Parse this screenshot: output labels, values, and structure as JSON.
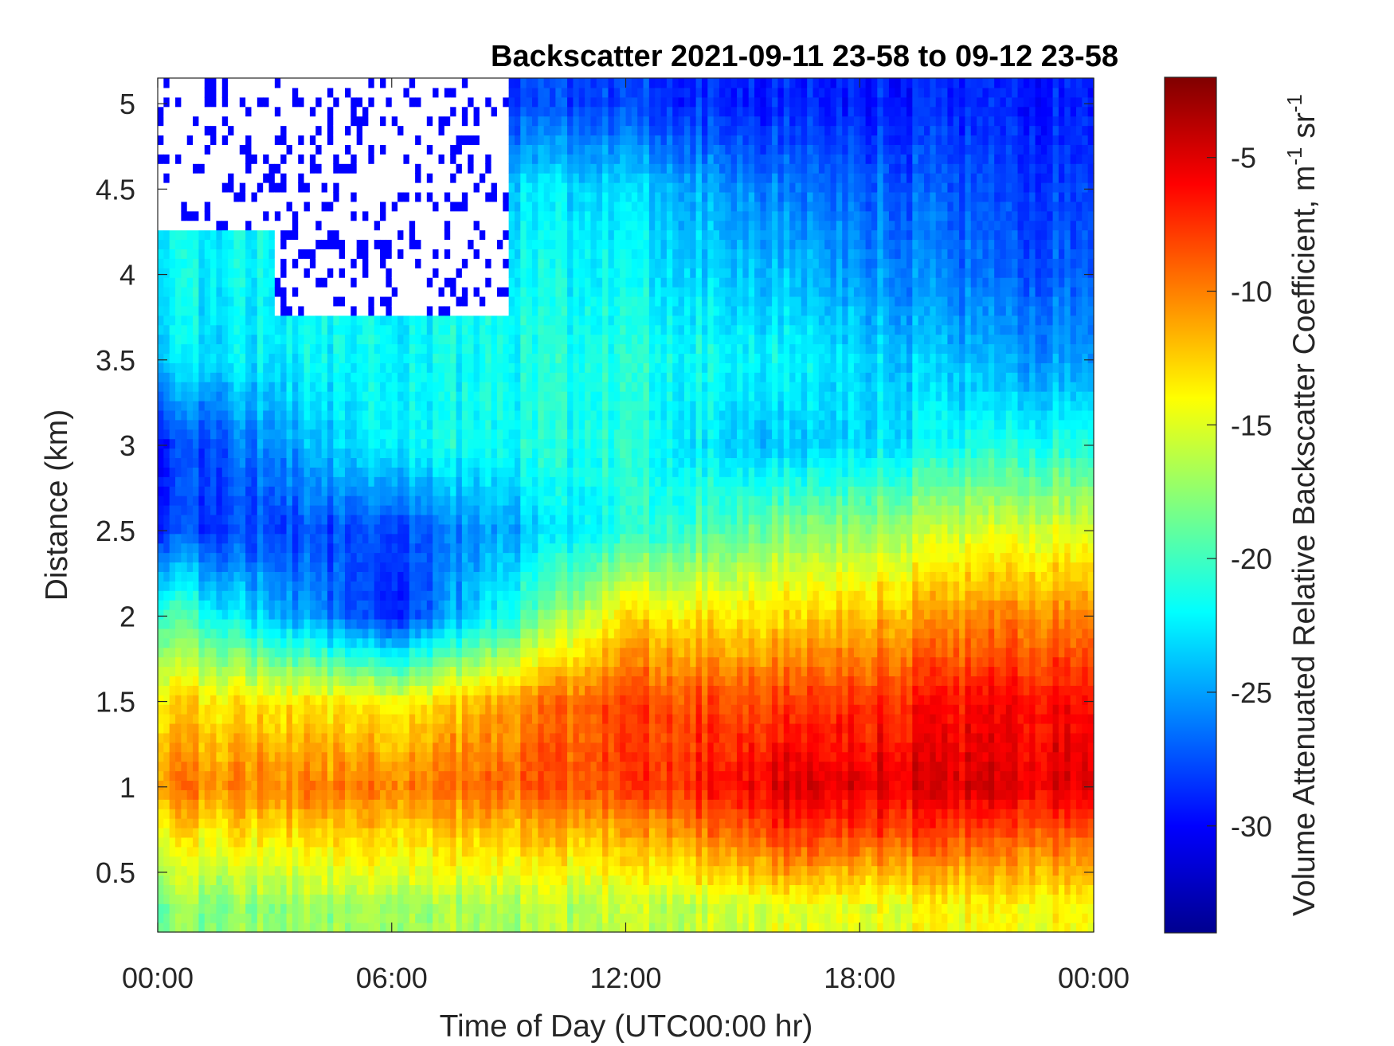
{
  "chart_data": {
    "type": "heatmap",
    "title": "Backscatter 2021-09-11 23-58 to 09-12 23-58",
    "xlabel": "Time of Day (UTC00:00 hr)",
    "ylabel": "Distance (km)",
    "xlim": [
      0,
      24
    ],
    "ylim": [
      0.15,
      5.15
    ],
    "x_ticks": [
      0,
      6,
      12,
      18,
      24
    ],
    "x_tick_labels": [
      "00:00",
      "06:00",
      "12:00",
      "18:00",
      "00:00"
    ],
    "y_ticks": [
      0.5,
      1,
      1.5,
      2,
      2.5,
      3,
      3.5,
      4,
      4.5,
      5
    ],
    "y_tick_labels": [
      "0.5",
      "1",
      "1.5",
      "2",
      "2.5",
      "3",
      "3.5",
      "4",
      "4.5",
      "5"
    ],
    "colorbar": {
      "label_main": "Volume Attenuated Relative Backscatter Coefficient, m",
      "label_sup1": "-1",
      "label_mid": " sr",
      "label_sup2": "-1",
      "clim": [
        -34,
        -2
      ],
      "ticks": [
        -5,
        -10,
        -15,
        -20,
        -25,
        -30
      ],
      "tick_labels": [
        "-5",
        "-10",
        "-15",
        "-20",
        "-25",
        "-30"
      ],
      "colormap": "jet"
    },
    "missing_color": "#ffffff",
    "grid": false,
    "approx_value_profiles_hours": [
      {
        "time_hr": 0,
        "heights_km": [
          0.3,
          0.7,
          1.0,
          1.5,
          2.0,
          2.5,
          3.0,
          3.5,
          4.0,
          4.5,
          5.0
        ],
        "values": [
          -18,
          -14,
          -10,
          -13,
          -19,
          -28,
          -29,
          -23,
          -22,
          null,
          null
        ]
      },
      {
        "time_hr": 6,
        "heights_km": [
          0.3,
          0.7,
          1.0,
          1.5,
          2.0,
          2.5,
          3.0,
          3.5,
          4.0,
          4.5,
          5.0
        ],
        "values": [
          -17,
          -13,
          -10,
          -14,
          -29,
          -28,
          -22,
          -22,
          null,
          null,
          null
        ]
      },
      {
        "time_hr": 12,
        "heights_km": [
          0.3,
          0.7,
          1.0,
          1.5,
          2.0,
          2.5,
          3.0,
          3.5,
          4.0,
          4.5,
          5.0
        ],
        "values": [
          -16,
          -12,
          -8,
          -8,
          -13,
          -21,
          -21,
          -21,
          -22,
          -23,
          -28
        ]
      },
      {
        "time_hr": 16,
        "heights_km": [
          0.3,
          0.7,
          1.0,
          1.5,
          2.0,
          2.5,
          3.0,
          3.5,
          4.0,
          4.5,
          5.0
        ],
        "values": [
          -15,
          -8,
          -5,
          -8,
          -13,
          -18,
          -24,
          -22,
          -24,
          -26,
          -29
        ]
      },
      {
        "time_hr": 22,
        "heights_km": [
          0.3,
          0.7,
          1.0,
          1.5,
          2.0,
          2.5,
          3.0,
          3.5,
          4.0,
          4.5,
          5.0
        ],
        "values": [
          -14,
          -9,
          -5,
          -6,
          -10,
          -15,
          -21,
          -25,
          -27,
          -28,
          -29
        ]
      }
    ]
  }
}
